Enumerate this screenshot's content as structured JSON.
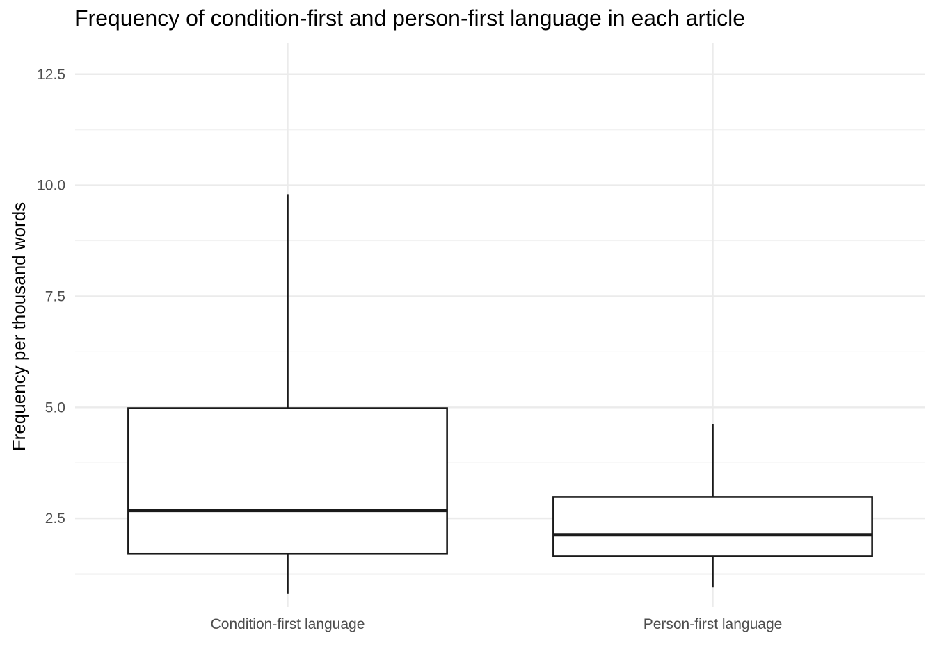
{
  "chart_data": {
    "type": "boxplot",
    "title": "Frequency of condition-first and person-first language in each article",
    "xlabel": "",
    "ylabel": "Frequency per thousand words",
    "ylim": [
      0.5,
      13.2
    ],
    "y_ticks": [
      "2.5",
      "5.0",
      "7.5",
      "10.0",
      "12.5"
    ],
    "grid": true,
    "colors": {
      "box_stroke": "#1a1a1a",
      "box_fill": "#ffffff",
      "grid_major": "#ebebeb",
      "grid_minor": "#f2f2f2"
    },
    "categories": [
      "Condition-first language",
      "Person-first language"
    ],
    "boxes": [
      {
        "category": "Condition-first language",
        "min": 0.8,
        "q1": 1.7,
        "median": 2.68,
        "q3": 4.98,
        "max": 9.8
      },
      {
        "category": "Person-first language",
        "min": 0.95,
        "q1": 1.65,
        "median": 2.13,
        "q3": 2.98,
        "max": 4.63
      }
    ]
  }
}
